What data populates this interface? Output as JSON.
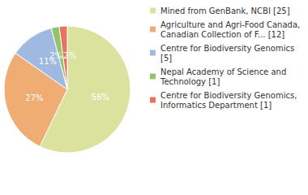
{
  "chart_data": {
    "type": "pie",
    "categories": [
      "Mined from GenBank, NCBI [25]",
      "Agriculture and Agri-Food Canada, Canadian Collection of F... [12]",
      "Centre for Biodiversity Genomics [5]",
      "Nepal Academy of Science and Technology [1]",
      "Centre for Biodiversity Genomics, Informatics Department [1]"
    ],
    "values": [
      56,
      27,
      11,
      2,
      2
    ],
    "value_labels": [
      "56%",
      "27%",
      "11%",
      "2%",
      "2%"
    ],
    "colors": [
      "#dbe29d",
      "#f0ad73",
      "#9fb9e0",
      "#93c46d",
      "#e6735c"
    ],
    "data_labels": true,
    "legend": "right"
  }
}
